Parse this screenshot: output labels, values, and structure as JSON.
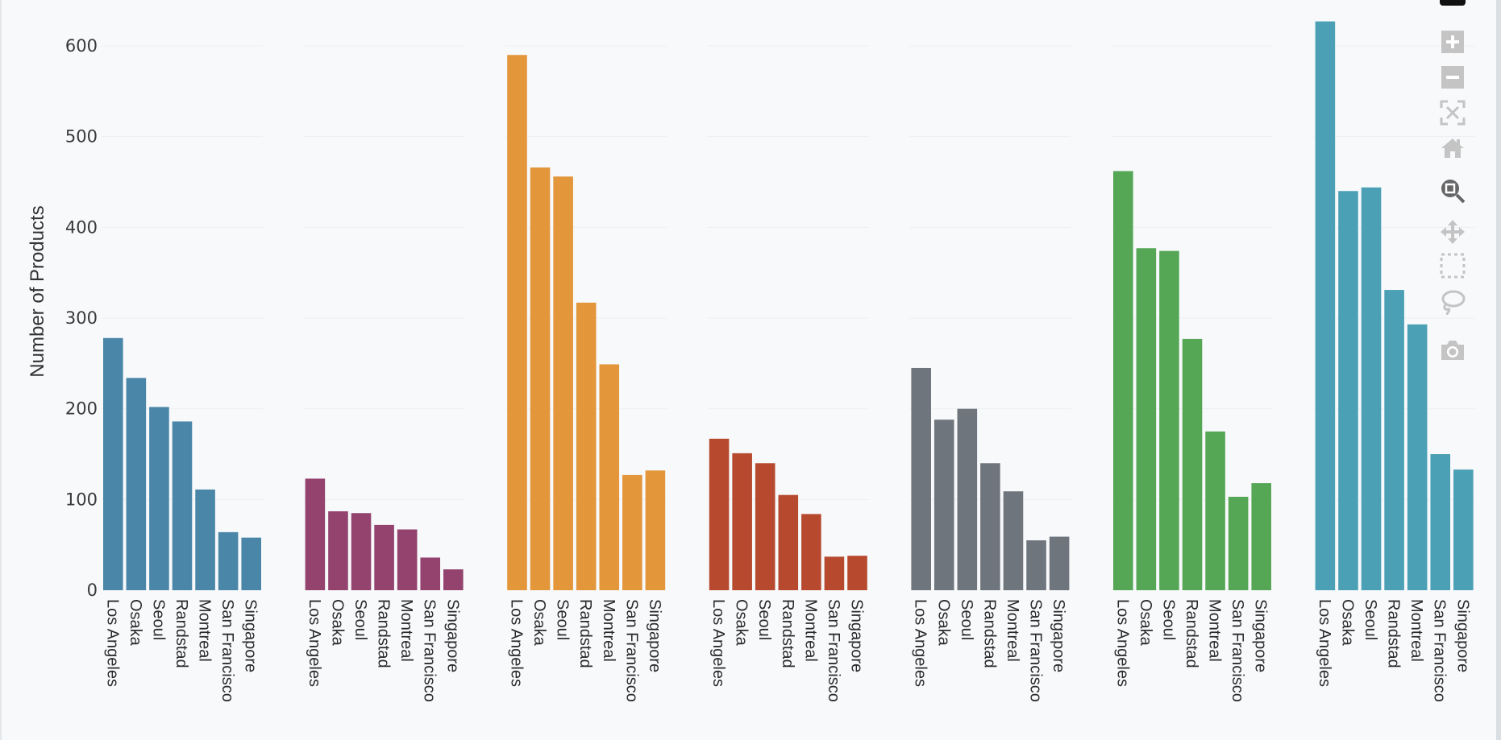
{
  "chart_data": {
    "type": "bar",
    "ylabel": "Number of Products",
    "xlabel": "",
    "ylim": [
      0,
      620
    ],
    "yticks": [
      0,
      100,
      200,
      300,
      400,
      500,
      600
    ],
    "grid": true,
    "categories": [
      "Los Angeles",
      "Osaka",
      "Seoul",
      "Randstad",
      "Montreal",
      "San Francisco",
      "Singapore"
    ],
    "panels": [
      {
        "color": "#4a86a8",
        "values": [
          278,
          234,
          202,
          186,
          111,
          64,
          58
        ]
      },
      {
        "color": "#93436e",
        "values": [
          123,
          87,
          85,
          72,
          67,
          36,
          23
        ]
      },
      {
        "color": "#e3963a",
        "values": [
          590,
          466,
          456,
          317,
          249,
          127,
          132
        ]
      },
      {
        "color": "#b74a2e",
        "values": [
          167,
          151,
          140,
          105,
          84,
          37,
          38
        ]
      },
      {
        "color": "#6f757c",
        "values": [
          245,
          188,
          200,
          140,
          109,
          55,
          59
        ]
      },
      {
        "color": "#55a655",
        "values": [
          462,
          377,
          374,
          277,
          175,
          103,
          118
        ]
      },
      {
        "color": "#4ba0b5",
        "values": [
          627,
          440,
          444,
          331,
          293,
          150,
          133
        ]
      }
    ]
  },
  "toolbar": {
    "icons": [
      "zoom-in-icon",
      "zoom-out-icon",
      "autoscale-icon",
      "reset-axes-icon",
      "zoom-icon",
      "pan-icon",
      "box-select-icon",
      "lasso-select-icon",
      "camera-icon"
    ],
    "active": "zoom-icon",
    "icon_color": "#c4c4c4",
    "active_color": "#666666"
  }
}
